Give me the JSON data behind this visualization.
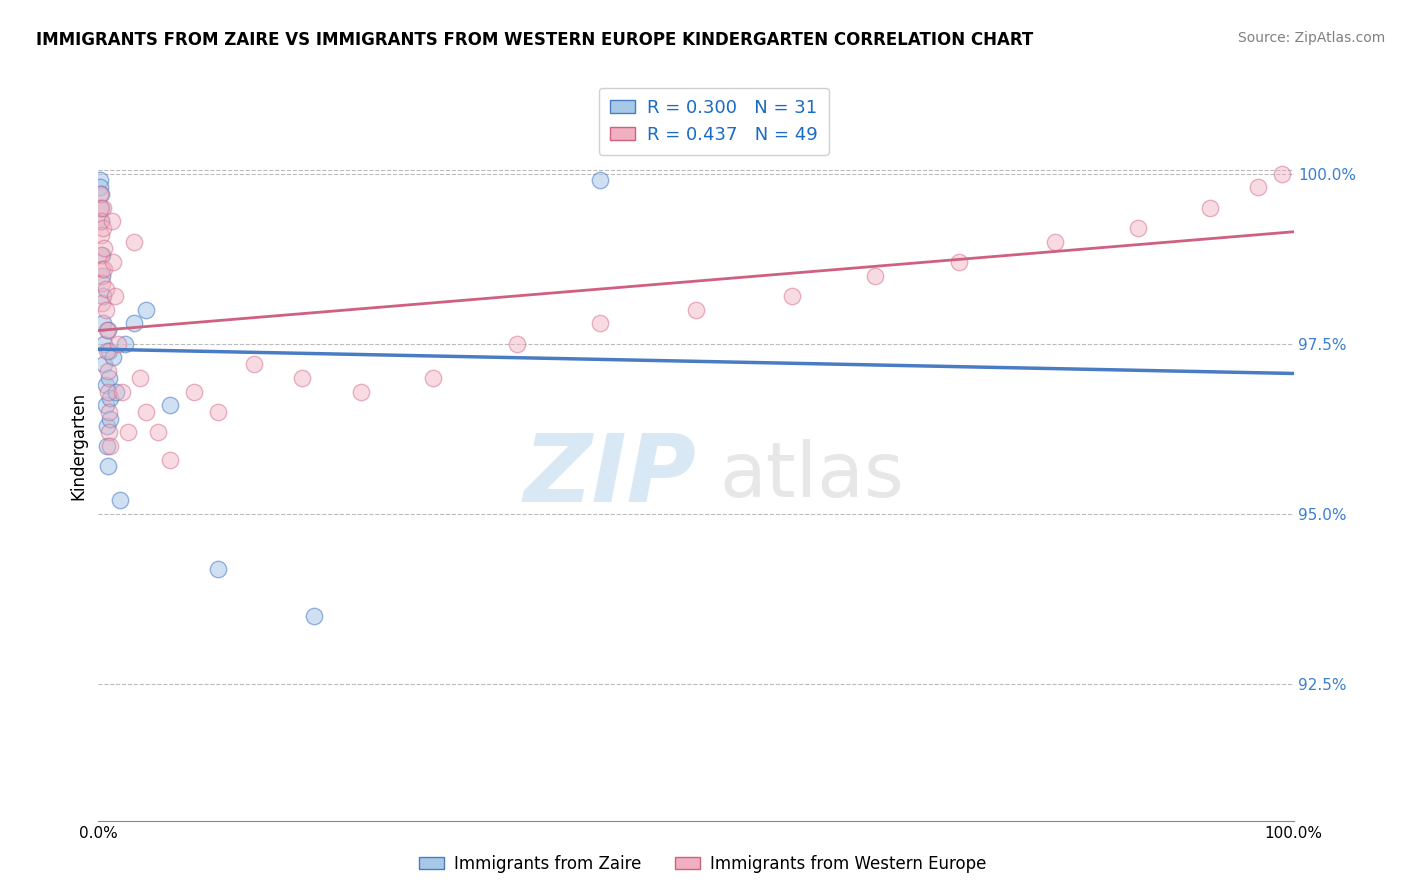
{
  "title": "IMMIGRANTS FROM ZAIRE VS IMMIGRANTS FROM WESTERN EUROPE KINDERGARTEN CORRELATION CHART",
  "source": "Source: ZipAtlas.com",
  "ylabel": "Kindergarten",
  "legend1_label": "Immigrants from Zaire",
  "legend2_label": "Immigrants from Western Europe",
  "R_zaire": 0.3,
  "N_zaire": 31,
  "R_west": 0.437,
  "N_west": 49,
  "color_zaire": "#a8c8e8",
  "color_west": "#f0b0c0",
  "line_color_zaire": "#4a7cc4",
  "line_color_west": "#d06080",
  "watermark_zip": "ZIP",
  "watermark_atlas": "atlas",
  "xlim": [
    0.0,
    1.0
  ],
  "ylim": [
    90.5,
    101.5
  ],
  "y_tick_vals": [
    92.5,
    95.0,
    97.5,
    100.0
  ],
  "zaire_x": [
    0.001,
    0.001,
    0.002,
    0.002,
    0.002,
    0.003,
    0.003,
    0.004,
    0.004,
    0.005,
    0.005,
    0.006,
    0.006,
    0.007,
    0.007,
    0.008,
    0.008,
    0.009,
    0.009,
    0.01,
    0.01,
    0.012,
    0.015,
    0.018,
    0.022,
    0.03,
    0.04,
    0.06,
    0.1,
    0.18,
    0.42
  ],
  "zaire_y": [
    99.9,
    99.8,
    99.5,
    99.3,
    99.7,
    98.8,
    98.5,
    98.2,
    97.8,
    97.5,
    97.2,
    96.9,
    96.6,
    96.3,
    96.0,
    95.7,
    97.7,
    97.4,
    97.0,
    96.7,
    96.4,
    97.3,
    96.8,
    95.2,
    97.5,
    97.8,
    98.0,
    96.6,
    94.2,
    93.5,
    99.9
  ],
  "west_x": [
    0.001,
    0.001,
    0.002,
    0.002,
    0.002,
    0.003,
    0.003,
    0.003,
    0.004,
    0.004,
    0.005,
    0.005,
    0.006,
    0.006,
    0.007,
    0.007,
    0.008,
    0.008,
    0.009,
    0.009,
    0.01,
    0.011,
    0.012,
    0.014,
    0.016,
    0.02,
    0.025,
    0.03,
    0.035,
    0.04,
    0.05,
    0.06,
    0.08,
    0.1,
    0.13,
    0.17,
    0.22,
    0.28,
    0.35,
    0.42,
    0.5,
    0.58,
    0.65,
    0.72,
    0.8,
    0.87,
    0.93,
    0.97,
    0.99
  ],
  "west_y": [
    99.7,
    99.5,
    99.3,
    99.1,
    98.8,
    98.6,
    98.4,
    98.1,
    99.5,
    99.2,
    98.9,
    98.6,
    98.3,
    98.0,
    97.7,
    97.4,
    97.1,
    96.8,
    96.5,
    96.2,
    96.0,
    99.3,
    98.7,
    98.2,
    97.5,
    96.8,
    96.2,
    99.0,
    97.0,
    96.5,
    96.2,
    95.8,
    96.8,
    96.5,
    97.2,
    97.0,
    96.8,
    97.0,
    97.5,
    97.8,
    98.0,
    98.2,
    98.5,
    98.7,
    99.0,
    99.2,
    99.5,
    99.8,
    100.0
  ]
}
